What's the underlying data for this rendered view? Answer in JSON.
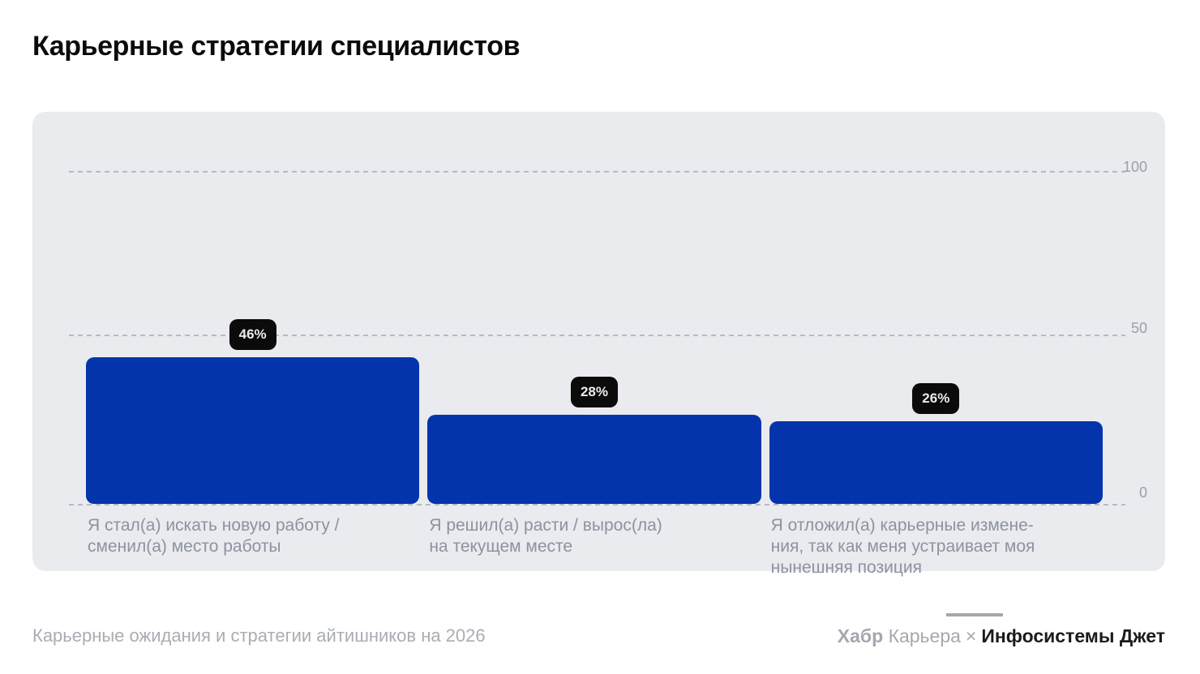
{
  "page": {
    "title": "Карьерные стратегии специалистов"
  },
  "chart_data": {
    "type": "bar",
    "title": "Карьерные стратегии специалистов",
    "categories": [
      "Я стал(а) искать новую работу /\nсменил(а) место работы",
      "Я решил(а) расти / вырос(ла)\nна текущем месте",
      "Я отложил(а) карьерные измене-\nния, так как меня устраивает моя\nнынешняя позиция"
    ],
    "values": [
      46,
      28,
      26
    ],
    "value_labels": [
      "46%",
      "28%",
      "26%"
    ],
    "ylim": [
      0,
      100
    ],
    "yticks": [
      "100",
      "50",
      "0"
    ],
    "grid": "horizontal dashed",
    "legend": "none",
    "bar_color": "#0434ac",
    "badge_bg": "#0b0b0b",
    "badge_text_color": "#ececec",
    "panel_bg": "#e9ebef"
  },
  "footer": {
    "source": "Карьерные ожидания и стратегии айтишников на 2026",
    "brand_habr_bold": "Хабр",
    "brand_habr_regular": "Карьера",
    "brand_separator": "×",
    "brand_partner": "Инфосистемы Джет"
  }
}
